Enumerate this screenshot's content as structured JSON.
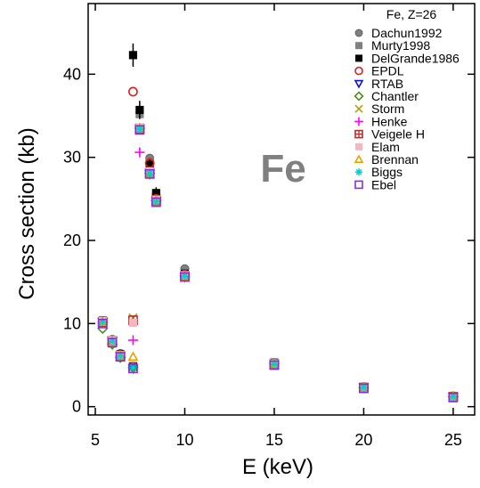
{
  "chart_data": {
    "type": "scatter",
    "xlabel": "E (keV)",
    "ylabel": "Cross section (kb)",
    "xlim": [
      4.6,
      26.2
    ],
    "ylim": [
      -1,
      48.5
    ],
    "xticks": [
      5,
      10,
      15,
      20,
      25
    ],
    "yticks": [
      0,
      10,
      20,
      30,
      40
    ],
    "element_label": "Fe",
    "legend_title": "Fe, Z=26",
    "legend_position": "top-right",
    "grid": false,
    "series": [
      {
        "name": "Dachun1992",
        "marker": "circle-filled",
        "color": "#808080",
        "points": [
          [
            5.41,
            10.3
          ],
          [
            5.95,
            8.1
          ],
          [
            6.4,
            6.4
          ],
          [
            7.11,
            4.8
          ],
          [
            8.04,
            29.9
          ],
          [
            8.4,
            25.5
          ],
          [
            10.0,
            16.6
          ],
          [
            15.0,
            5.3
          ],
          [
            20.0,
            2.4
          ],
          [
            25.0,
            1.3
          ]
        ]
      },
      {
        "name": "Murty1998",
        "marker": "square-filled",
        "color": "#808080",
        "points": [
          [
            5.41,
            10.4
          ],
          [
            5.9,
            8.0
          ],
          [
            6.4,
            6.2
          ],
          [
            7.11,
            4.9
          ],
          [
            7.48,
            35.2
          ],
          [
            8.04,
            29.5
          ],
          [
            8.4,
            25.3
          ],
          [
            10.0,
            16.1
          ],
          [
            15.0,
            5.2
          ],
          [
            20.0,
            2.4
          ],
          [
            25.0,
            1.2
          ]
        ]
      },
      {
        "name": "DelGrande1986",
        "marker": "square-filled",
        "color": "#000000",
        "points": [
          [
            5.41,
            10.3
          ],
          [
            5.95,
            8.0
          ],
          [
            6.4,
            6.3
          ],
          [
            7.11,
            4.8
          ],
          [
            7.11,
            42.3
          ],
          [
            7.48,
            35.7
          ],
          [
            8.04,
            29.1
          ],
          [
            8.4,
            25.7
          ],
          [
            10.0,
            16.0
          ],
          [
            15.0,
            5.3
          ],
          [
            20.0,
            2.3
          ],
          [
            25.0,
            1.2
          ]
        ],
        "errors": [
          [
            5.41,
            0.3
          ],
          [
            5.95,
            0.3
          ],
          [
            6.4,
            0.3
          ],
          [
            7.11,
            0.3
          ],
          [
            7.11,
            1.4
          ],
          [
            7.48,
            1.1
          ],
          [
            8.04,
            0.8
          ],
          [
            8.4,
            0.7
          ],
          [
            10.0,
            0.5
          ],
          [
            15.0,
            0.2
          ],
          [
            20.0,
            0.1
          ],
          [
            25.0,
            0.1
          ]
        ]
      },
      {
        "name": "EPDL",
        "marker": "circle-open",
        "color": "#e41a1c",
        "points": [
          [
            5.41,
            10.3
          ],
          [
            5.95,
            8.0
          ],
          [
            6.4,
            6.2
          ],
          [
            7.11,
            4.8
          ],
          [
            7.11,
            37.9
          ],
          [
            8.04,
            29.3
          ],
          [
            8.4,
            25.0
          ],
          [
            10.0,
            15.9
          ],
          [
            15.0,
            5.2
          ],
          [
            20.0,
            2.3
          ],
          [
            25.0,
            1.2
          ]
        ]
      },
      {
        "name": "RTAB",
        "marker": "triangle-down-open",
        "color": "#1010dd",
        "points": [
          [
            5.41,
            10.2
          ],
          [
            5.95,
            7.9
          ],
          [
            6.4,
            6.1
          ],
          [
            7.11,
            4.6
          ],
          [
            7.48,
            33.4
          ],
          [
            8.04,
            28.0
          ],
          [
            8.4,
            24.7
          ],
          [
            10.0,
            15.6
          ],
          [
            15.0,
            5.1
          ],
          [
            20.0,
            2.3
          ],
          [
            25.0,
            1.2
          ]
        ]
      },
      {
        "name": "Chantler",
        "marker": "diamond-open",
        "color": "#4d8c1a",
        "points": [
          [
            5.41,
            9.4
          ],
          [
            5.95,
            7.5
          ],
          [
            6.4,
            5.9
          ],
          [
            7.11,
            4.7
          ],
          [
            7.48,
            33.5
          ],
          [
            8.04,
            28.1
          ],
          [
            8.4,
            24.8
          ],
          [
            10.0,
            15.7
          ],
          [
            15.0,
            5.2
          ],
          [
            20.0,
            2.3
          ],
          [
            25.0,
            1.2
          ]
        ]
      },
      {
        "name": "Storm",
        "marker": "x",
        "color": "#b8a000",
        "points": [
          [
            5.41,
            10.2
          ],
          [
            5.95,
            8.0
          ],
          [
            6.4,
            6.2
          ],
          [
            7.11,
            10.7
          ],
          [
            7.48,
            33.6
          ],
          [
            8.04,
            28.2
          ],
          [
            8.4,
            24.9
          ],
          [
            10.0,
            15.8
          ],
          [
            15.0,
            5.2
          ],
          [
            20.0,
            2.3
          ],
          [
            25.0,
            1.2
          ]
        ]
      },
      {
        "name": "Henke",
        "marker": "plus",
        "color": "#ff00ff",
        "points": [
          [
            5.41,
            10.1
          ],
          [
            5.95,
            7.8
          ],
          [
            6.4,
            6.0
          ],
          [
            7.11,
            8.0
          ],
          [
            7.48,
            30.6
          ],
          [
            8.04,
            28.0
          ],
          [
            8.4,
            24.8
          ],
          [
            10.0,
            15.7
          ],
          [
            15.0,
            5.1
          ],
          [
            20.0,
            2.3
          ],
          [
            25.0,
            1.2
          ]
        ]
      },
      {
        "name": "Veigele H",
        "marker": "square-cross",
        "color": "#b03030",
        "points": [
          [
            5.41,
            10.2
          ],
          [
            5.95,
            7.9
          ],
          [
            6.4,
            6.1
          ],
          [
            7.11,
            10.4
          ],
          [
            7.48,
            33.4
          ],
          [
            8.04,
            28.1
          ],
          [
            8.4,
            24.8
          ],
          [
            10.0,
            15.7
          ],
          [
            15.0,
            5.1
          ],
          [
            20.0,
            2.3
          ],
          [
            25.0,
            1.2
          ]
        ]
      },
      {
        "name": "Elam",
        "marker": "square-filled",
        "color": "#f4b6c2",
        "points": [
          [
            5.41,
            10.3
          ],
          [
            5.95,
            8.0
          ],
          [
            6.4,
            6.2
          ],
          [
            7.11,
            10.1
          ],
          [
            7.48,
            33.6
          ],
          [
            8.04,
            28.3
          ],
          [
            8.4,
            24.9
          ],
          [
            10.0,
            15.8
          ],
          [
            15.0,
            5.2
          ],
          [
            20.0,
            2.3
          ],
          [
            25.0,
            1.2
          ]
        ]
      },
      {
        "name": "Brennan",
        "marker": "triangle-up-open",
        "color": "#f0a000",
        "points": [
          [
            5.41,
            10.2
          ],
          [
            5.95,
            7.8
          ],
          [
            6.4,
            6.1
          ],
          [
            7.11,
            6.0
          ],
          [
            7.48,
            33.5
          ],
          [
            8.04,
            28.0
          ],
          [
            8.4,
            24.8
          ],
          [
            10.0,
            15.7
          ],
          [
            15.0,
            5.1
          ],
          [
            20.0,
            2.3
          ],
          [
            25.0,
            1.2
          ]
        ]
      },
      {
        "name": "Biggs",
        "marker": "asterisk",
        "color": "#00d0d0",
        "points": [
          [
            5.41,
            10.2
          ],
          [
            5.95,
            7.9
          ],
          [
            6.4,
            6.1
          ],
          [
            7.11,
            4.7
          ],
          [
            7.48,
            33.4
          ],
          [
            8.04,
            28.0
          ],
          [
            8.4,
            24.7
          ],
          [
            10.0,
            15.7
          ],
          [
            15.0,
            5.1
          ],
          [
            20.0,
            2.3
          ],
          [
            25.0,
            1.2
          ]
        ]
      },
      {
        "name": "Ebel",
        "marker": "square-open",
        "color": "#8a2be2",
        "points": [
          [
            5.41,
            10.0
          ],
          [
            5.95,
            7.7
          ],
          [
            6.4,
            6.0
          ],
          [
            7.11,
            4.6
          ],
          [
            7.48,
            33.3
          ],
          [
            8.04,
            28.0
          ],
          [
            8.4,
            24.6
          ],
          [
            10.0,
            15.6
          ],
          [
            15.0,
            5.0
          ],
          [
            20.0,
            2.2
          ],
          [
            25.0,
            1.1
          ]
        ]
      }
    ]
  }
}
